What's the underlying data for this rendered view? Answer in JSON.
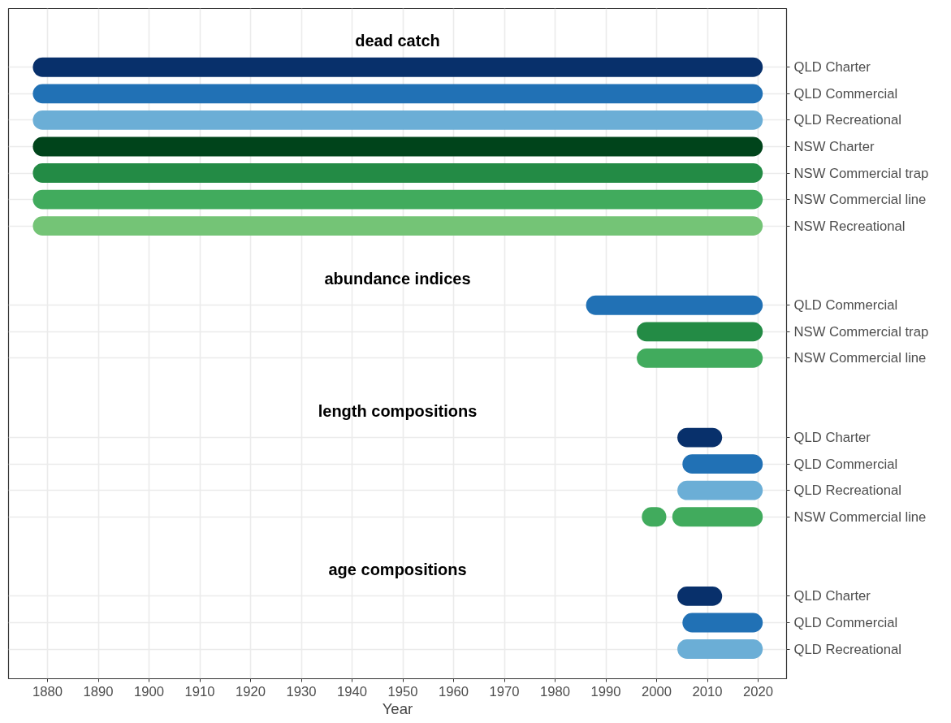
{
  "chart_data": {
    "type": "bar",
    "orientation": "horizontal",
    "xlabel": "Year",
    "categories": [
      null,
      "QLD Charter",
      "QLD Commercial",
      "QLD Recreational",
      "NSW Charter",
      "NSW Commercial trap",
      "NSW Commercial line",
      "NSW Recreational",
      null,
      null,
      "QLD Commercial",
      "NSW Commercial trap",
      "NSW Commercial line",
      null,
      null,
      "QLD Charter",
      "QLD Commercial",
      "QLD Recreational",
      "NSW Commercial line",
      null,
      null,
      "QLD Charter",
      "QLD Commercial",
      "QLD Recreational"
    ],
    "series": [
      {
        "base": [
          null,
          1879,
          1879,
          1879,
          1879,
          1879,
          1879,
          1879,
          null,
          null,
          1988,
          1998,
          1998,
          null,
          null,
          2006,
          2007,
          2006,
          1999,
          null,
          null,
          2006,
          2007,
          2006
        ],
        "values": [
          null,
          140,
          140,
          140,
          140,
          140,
          140,
          140,
          null,
          null,
          31,
          21,
          21,
          null,
          null,
          5,
          12,
          13,
          1,
          null,
          null,
          5,
          12,
          13
        ],
        "colors": [
          null,
          "#08306b",
          "#2171b5",
          "#6baed6",
          "#00441b",
          "#238b45",
          "#41ab5d",
          "#74c476",
          null,
          null,
          "#2171b5",
          "#238b45",
          "#41ab5d",
          null,
          null,
          "#08306b",
          "#2171b5",
          "#6baed6",
          "#41ab5d",
          null,
          null,
          "#08306b",
          "#2171b5",
          "#6baed6"
        ]
      },
      {
        "base": [
          null,
          null,
          null,
          null,
          null,
          null,
          null,
          null,
          null,
          null,
          null,
          null,
          null,
          null,
          null,
          null,
          null,
          null,
          2005,
          null,
          null,
          null,
          null,
          null
        ],
        "values": [
          null,
          null,
          null,
          null,
          null,
          null,
          null,
          null,
          null,
          null,
          null,
          null,
          null,
          null,
          null,
          null,
          null,
          null,
          14,
          null,
          null,
          null,
          null,
          null
        ],
        "colors": [
          null,
          null,
          null,
          null,
          null,
          null,
          null,
          null,
          null,
          null,
          null,
          null,
          null,
          null,
          null,
          null,
          null,
          null,
          "#41ab5d",
          null,
          null,
          null,
          null,
          null
        ]
      }
    ],
    "annotations": [
      "dead catch",
      "abundance indices",
      "length compositions",
      "age compositions"
    ],
    "xlim": [
      1872.3,
      2025.6
    ],
    "xticks": [
      1880,
      1890,
      1900,
      1910,
      1920,
      1930,
      1940,
      1950,
      1960,
      1970,
      1980,
      1990,
      2000,
      2010,
      2020
    ],
    "grid": true
  }
}
